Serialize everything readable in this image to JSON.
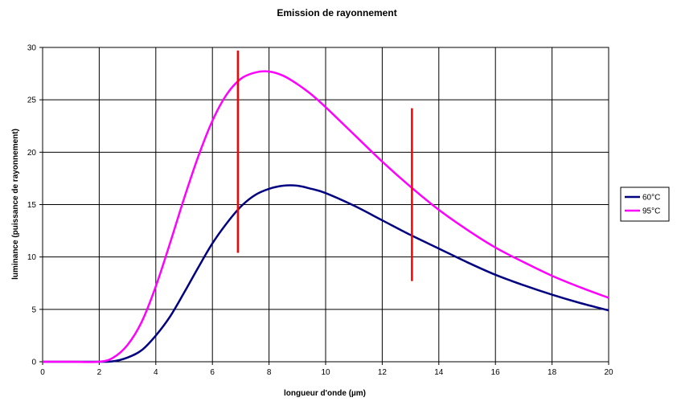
{
  "chart_data": {
    "type": "line",
    "title": "Emission de rayonnement",
    "xlabel": "longueur d'onde (µm)",
    "ylabel": "luminance (puissance de rayonnement)",
    "xlim": [
      0,
      20
    ],
    "ylim": [
      0,
      30
    ],
    "xticks": [
      0,
      2,
      4,
      6,
      8,
      10,
      12,
      14,
      16,
      18,
      20
    ],
    "yticks": [
      0,
      5,
      10,
      15,
      20,
      25,
      30
    ],
    "grid": true,
    "legend_position": "right",
    "x": [
      0,
      1,
      2,
      2.5,
      3,
      3.5,
      4,
      4.5,
      5,
      5.5,
      6,
      6.5,
      7,
      7.5,
      8,
      8.5,
      9,
      9.5,
      10,
      11,
      12,
      13,
      14,
      15,
      16,
      17,
      18,
      19,
      20
    ],
    "series": [
      {
        "name": "60°C",
        "color": "#000080",
        "values": [
          0,
          0,
          0,
          0.05,
          0.4,
          1.1,
          2.5,
          4.3,
          6.6,
          9.0,
          11.3,
          13.2,
          14.8,
          15.9,
          16.5,
          16.8,
          16.8,
          16.5,
          16.1,
          14.9,
          13.5,
          12.1,
          10.8,
          9.5,
          8.3,
          7.3,
          6.4,
          5.6,
          4.9
        ]
      },
      {
        "name": "95°C",
        "color": "#ff00ff",
        "values": [
          0,
          0,
          0,
          0.4,
          1.6,
          3.8,
          7.2,
          11.3,
          15.6,
          19.6,
          23.0,
          25.5,
          27.0,
          27.6,
          27.7,
          27.3,
          26.5,
          25.5,
          24.3,
          21.7,
          19.1,
          16.7,
          14.5,
          12.6,
          10.9,
          9.5,
          8.2,
          7.1,
          6.1
        ]
      }
    ],
    "markers": [
      {
        "x": 6.9,
        "y_top": 29.7,
        "y_bottom": 10.4,
        "color": "#ff0000"
      },
      {
        "x": 13.05,
        "y_top": 24.2,
        "y_bottom": 7.7,
        "color": "#ff0000"
      }
    ]
  }
}
